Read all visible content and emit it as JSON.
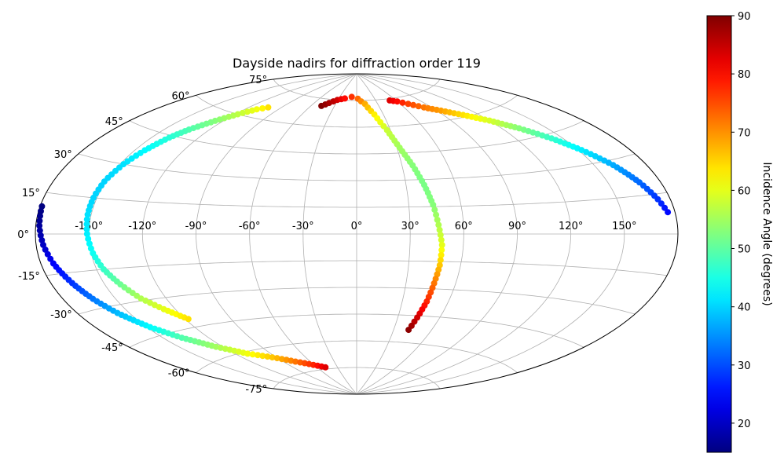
{
  "chart_data": {
    "type": "scatter",
    "projection": "aitoff",
    "title": "Dayside nadirs for diffraction order 119",
    "xlabel": "",
    "ylabel": "",
    "grid": true,
    "lon_ticks": [
      "-150°",
      "-120°",
      "-90°",
      "-60°",
      "-30°",
      "0°",
      "30°",
      "60°",
      "90°",
      "120°",
      "150°"
    ],
    "lon_tick_values": [
      -150,
      -120,
      -90,
      -60,
      -30,
      0,
      30,
      60,
      90,
      120,
      150
    ],
    "lat_ticks": [
      "75°",
      "60°",
      "45°",
      "30°",
      "15°",
      "0°",
      "-15°",
      "-30°",
      "-45°",
      "-60°",
      "-75°"
    ],
    "lat_tick_values": [
      75,
      60,
      45,
      30,
      15,
      0,
      -15,
      -30,
      -45,
      -60,
      -75
    ],
    "colorbar": {
      "label": "Incidence Angle (degrees)",
      "colormap": "jet",
      "range": [
        15,
        90
      ],
      "ticks": [
        "20",
        "30",
        "40",
        "50",
        "60",
        "70",
        "80",
        "90"
      ],
      "tick_values": [
        20,
        30,
        40,
        50,
        60,
        70,
        80,
        90
      ]
    },
    "series": [
      {
        "points": [
          [
            -103,
            66,
            64
          ],
          [
            -110,
            64,
            61
          ],
          [
            -118,
            60,
            57
          ],
          [
            -126,
            55,
            53
          ],
          [
            -134,
            49,
            49
          ],
          [
            -139,
            44,
            46
          ],
          [
            -144,
            37,
            43
          ],
          [
            -148,
            30,
            41
          ],
          [
            -151,
            22,
            40
          ],
          [
            -152,
            15,
            40
          ],
          [
            -152,
            8,
            41
          ],
          [
            -151,
            0,
            42
          ],
          [
            -149,
            -8,
            44
          ],
          [
            -146,
            -15,
            47
          ],
          [
            -141,
            -22,
            51
          ],
          [
            -135,
            -29,
            56
          ],
          [
            -127,
            -35,
            60
          ],
          [
            -118,
            -41,
            64
          ]
        ]
      },
      {
        "points": [
          [
            -47,
            71,
            90
          ],
          [
            -40,
            73,
            87
          ],
          [
            -31,
            75,
            84
          ],
          [
            -20,
            76,
            80
          ],
          [
            -9,
            77,
            77
          ],
          [
            2,
            76,
            73
          ],
          [
            12,
            73,
            68
          ],
          [
            20,
            67,
            63
          ],
          [
            27,
            58,
            58
          ],
          [
            32,
            48,
            55
          ],
          [
            37,
            38,
            53
          ],
          [
            41,
            27,
            52
          ],
          [
            44,
            16,
            53
          ],
          [
            46,
            5,
            56
          ],
          [
            48,
            -6,
            60
          ],
          [
            48,
            -17,
            66
          ],
          [
            47,
            -27,
            72
          ],
          [
            46,
            -37,
            78
          ],
          [
            44,
            -46,
            84
          ],
          [
            42,
            -53,
            89
          ]
        ]
      },
      {
        "points": [
          [
            51,
            74,
            83
          ],
          [
            60,
            73,
            80
          ],
          [
            70,
            71,
            76
          ],
          [
            82,
            68,
            72
          ],
          [
            94,
            65,
            69
          ],
          [
            107,
            61,
            64
          ],
          [
            120,
            56,
            59
          ],
          [
            132,
            50,
            53
          ],
          [
            143,
            43,
            47
          ],
          [
            152,
            36,
            42
          ],
          [
            161,
            28,
            37
          ],
          [
            168,
            20,
            32
          ],
          [
            173,
            13,
            28
          ],
          [
            176,
            8,
            25
          ]
        ]
      },
      {
        "points": [
          [
            -179,
            10,
            15
          ],
          [
            -178,
            3,
            17
          ],
          [
            -176,
            -4,
            20
          ],
          [
            -173,
            -11,
            24
          ],
          [
            -168,
            -19,
            28
          ],
          [
            -163,
            -26,
            33
          ],
          [
            -157,
            -33,
            38
          ],
          [
            -148,
            -41,
            43
          ],
          [
            -138,
            -48,
            49
          ],
          [
            -125,
            -55,
            55
          ],
          [
            -110,
            -61,
            61
          ],
          [
            -94,
            -65,
            66
          ],
          [
            -77,
            -69,
            72
          ],
          [
            -61,
            -72,
            78
          ],
          [
            -48,
            -74,
            83
          ]
        ]
      }
    ]
  }
}
